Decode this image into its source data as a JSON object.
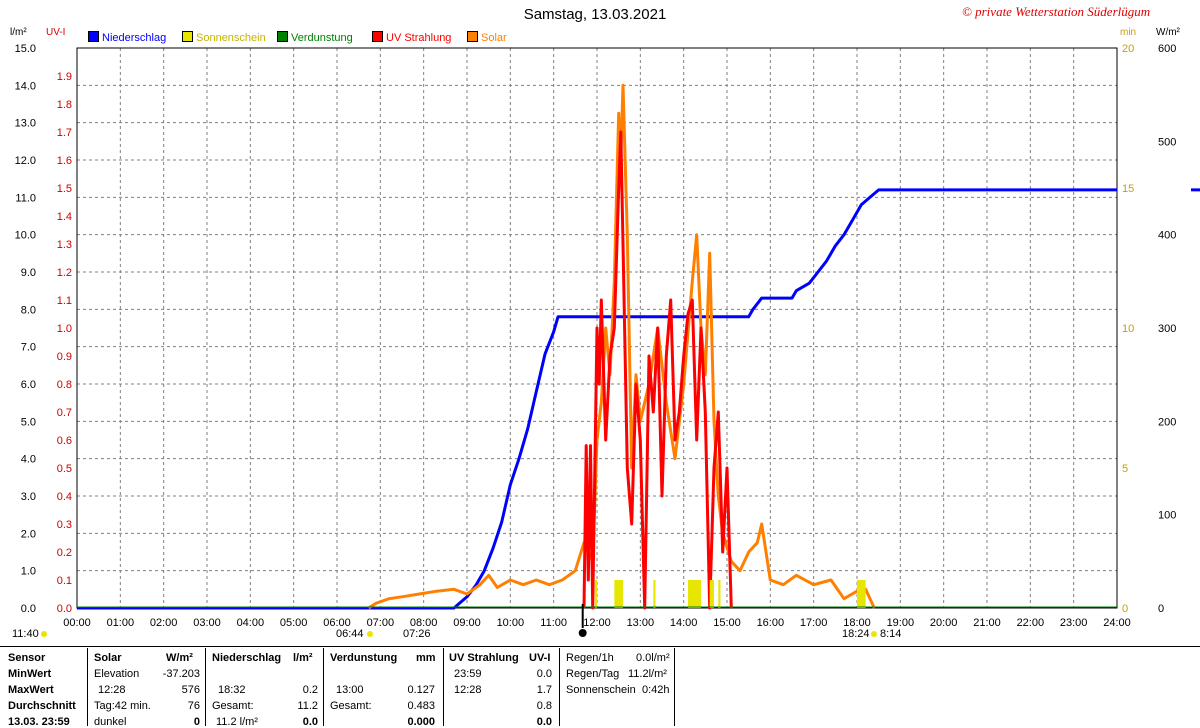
{
  "title": "Samstag, 13.03.2021",
  "station": "© private Wetterstation Süderlügum",
  "legend": [
    {
      "label": "Niederschlag",
      "color": "#0000ff"
    },
    {
      "label": "Sonnenschein",
      "color": "#e6e600"
    },
    {
      "label": "Verdunstung",
      "color": "#008000"
    },
    {
      "label": "UV Strahlung",
      "color": "#ff0000"
    },
    {
      "label": "Solar",
      "color": "#ff8000"
    }
  ],
  "axis_units": {
    "left1": "l/m²",
    "left2": "UV-I",
    "right1": "min",
    "right2": "W/m²"
  },
  "markers": {
    "left_time": "11:40",
    "sunrise_left": "06:44",
    "sunrise_right": "07:26",
    "sunset_left": "18:24",
    "sunset_right": "8:14"
  },
  "chart_data": {
    "type": "line",
    "x_ticks": [
      "00:00",
      "01:00",
      "02:00",
      "03:00",
      "04:00",
      "05:00",
      "06:00",
      "07:00",
      "08:00",
      "09:00",
      "10:00",
      "11:00",
      "12:00",
      "13:00",
      "14:00",
      "15:00",
      "16:00",
      "17:00",
      "18:00",
      "19:00",
      "20:00",
      "21:00",
      "22:00",
      "23:00",
      "24:00"
    ],
    "y_left_precip_ticks": [
      "0.0",
      "1.0",
      "2.0",
      "3.0",
      "4.0",
      "5.0",
      "6.0",
      "7.0",
      "8.0",
      "9.0",
      "10.0",
      "11.0",
      "12.0",
      "13.0",
      "14.0",
      "15.0"
    ],
    "y_left_uv_ticks": [
      "0.0",
      "0.1",
      "0.2",
      "0.3",
      "0.4",
      "0.5",
      "0.6",
      "0.7",
      "0.8",
      "0.9",
      "1.0",
      "1.1",
      "1.2",
      "1.3",
      "1.4",
      "1.5",
      "1.6",
      "1.7",
      "1.8",
      "1.9"
    ],
    "y_right_min_ticks": [
      "0",
      "5",
      "10",
      "15",
      "20"
    ],
    "y_right_solar_ticks": [
      "0",
      "100",
      "200",
      "300",
      "400",
      "500",
      "600"
    ],
    "ylim_precip": [
      0,
      15
    ],
    "ylim_uv": [
      0,
      2.0
    ],
    "ylim_min": [
      0,
      20
    ],
    "ylim_solar": [
      0,
      600
    ],
    "series": [
      {
        "name": "Niederschlag",
        "axis": "precip",
        "color": "#0000ff",
        "points": [
          [
            0,
            0
          ],
          [
            8.7,
            0
          ],
          [
            8.8,
            0.1
          ],
          [
            9.0,
            0.3
          ],
          [
            9.2,
            0.6
          ],
          [
            9.4,
            1.0
          ],
          [
            9.6,
            1.6
          ],
          [
            9.8,
            2.3
          ],
          [
            10.0,
            3.3
          ],
          [
            10.2,
            4.0
          ],
          [
            10.4,
            4.8
          ],
          [
            10.6,
            5.8
          ],
          [
            10.8,
            6.8
          ],
          [
            11.0,
            7.4
          ],
          [
            11.1,
            7.8
          ],
          [
            15.5,
            7.8
          ],
          [
            15.6,
            8.0
          ],
          [
            15.8,
            8.3
          ],
          [
            16.5,
            8.3
          ],
          [
            16.6,
            8.5
          ],
          [
            16.9,
            8.7
          ],
          [
            17.1,
            9.0
          ],
          [
            17.3,
            9.3
          ],
          [
            17.5,
            9.7
          ],
          [
            17.7,
            10.0
          ],
          [
            17.9,
            10.4
          ],
          [
            18.1,
            10.8
          ],
          [
            18.3,
            11.0
          ],
          [
            18.5,
            11.2
          ],
          [
            24,
            11.2
          ]
        ]
      },
      {
        "name": "Solar",
        "axis": "solar",
        "color": "#ff8000",
        "points": [
          [
            6.73,
            0
          ],
          [
            6.9,
            5
          ],
          [
            7.2,
            10
          ],
          [
            7.5,
            12
          ],
          [
            7.9,
            15
          ],
          [
            8.3,
            18
          ],
          [
            8.7,
            20
          ],
          [
            9.0,
            15
          ],
          [
            9.3,
            25
          ],
          [
            9.5,
            35
          ],
          [
            9.7,
            22
          ],
          [
            10.0,
            30
          ],
          [
            10.3,
            25
          ],
          [
            10.6,
            30
          ],
          [
            10.9,
            25
          ],
          [
            11.2,
            30
          ],
          [
            11.5,
            40
          ],
          [
            11.7,
            70
          ],
          [
            11.9,
            50
          ],
          [
            12.0,
            180
          ],
          [
            12.1,
            220
          ],
          [
            12.2,
            300
          ],
          [
            12.3,
            250
          ],
          [
            12.4,
            350
          ],
          [
            12.5,
            530
          ],
          [
            12.55,
            480
          ],
          [
            12.6,
            560
          ],
          [
            12.7,
            400
          ],
          [
            12.8,
            150
          ],
          [
            12.9,
            250
          ],
          [
            13.0,
            200
          ],
          [
            13.2,
            240
          ],
          [
            13.4,
            300
          ],
          [
            13.6,
            220
          ],
          [
            13.8,
            160
          ],
          [
            14.0,
            240
          ],
          [
            14.2,
            350
          ],
          [
            14.3,
            400
          ],
          [
            14.4,
            300
          ],
          [
            14.5,
            250
          ],
          [
            14.6,
            380
          ],
          [
            14.7,
            200
          ],
          [
            14.8,
            120
          ],
          [
            14.9,
            80
          ],
          [
            15.1,
            50
          ],
          [
            15.3,
            40
          ],
          [
            15.5,
            60
          ],
          [
            15.7,
            70
          ],
          [
            15.8,
            90
          ],
          [
            15.9,
            60
          ],
          [
            16.0,
            30
          ],
          [
            16.3,
            25
          ],
          [
            16.6,
            35
          ],
          [
            17.0,
            25
          ],
          [
            17.4,
            30
          ],
          [
            17.7,
            10
          ],
          [
            18.0,
            18
          ],
          [
            18.2,
            20
          ],
          [
            18.3,
            10
          ],
          [
            18.4,
            0
          ]
        ]
      },
      {
        "name": "UV Strahlung",
        "axis": "uv",
        "color": "#ff0000",
        "points": [
          [
            11.7,
            0
          ],
          [
            11.75,
            0.58
          ],
          [
            11.8,
            0.1
          ],
          [
            11.85,
            0.58
          ],
          [
            11.9,
            0
          ],
          [
            12.0,
            1.0
          ],
          [
            12.05,
            0.8
          ],
          [
            12.1,
            1.1
          ],
          [
            12.2,
            0.6
          ],
          [
            12.3,
            0.9
          ],
          [
            12.4,
            1.0
          ],
          [
            12.5,
            1.5
          ],
          [
            12.55,
            1.7
          ],
          [
            12.6,
            1.3
          ],
          [
            12.7,
            0.5
          ],
          [
            12.8,
            0.3
          ],
          [
            12.9,
            0.8
          ],
          [
            13.0,
            0.6
          ],
          [
            13.1,
            0.0
          ],
          [
            13.2,
            0.9
          ],
          [
            13.3,
            0.7
          ],
          [
            13.4,
            1.0
          ],
          [
            13.5,
            0.4
          ],
          [
            13.6,
            0.9
          ],
          [
            13.7,
            1.1
          ],
          [
            13.8,
            0.6
          ],
          [
            13.9,
            0.7
          ],
          [
            14.0,
            0.9
          ],
          [
            14.1,
            1.05
          ],
          [
            14.2,
            1.1
          ],
          [
            14.3,
            0.6
          ],
          [
            14.4,
            1.0
          ],
          [
            14.5,
            0.7
          ],
          [
            14.6,
            0.0
          ],
          [
            14.7,
            0.5
          ],
          [
            14.8,
            0.7
          ],
          [
            14.9,
            0.2
          ],
          [
            15.0,
            0.5
          ],
          [
            15.1,
            0.0
          ]
        ]
      },
      {
        "name": "Sonnenschein",
        "axis": "min",
        "color": "#e6e600",
        "bars": [
          [
            11.95,
            12.0,
            1
          ],
          [
            12.4,
            12.6,
            1
          ],
          [
            13.3,
            13.35,
            1
          ],
          [
            14.1,
            14.4,
            1
          ],
          [
            14.6,
            14.7,
            1
          ],
          [
            14.8,
            14.85,
            1
          ],
          [
            18.0,
            18.2,
            1
          ]
        ]
      }
    ]
  },
  "sensors": {
    "headers": [
      "Sensor",
      "MinWert",
      "MaxWert",
      "Durchschnitt",
      "13.03. 23:59"
    ],
    "solar": {
      "title": "Solar",
      "unit": "W/m²",
      "r1a": "Elevation",
      "r1b": "-37.203",
      "r2a": "12:28",
      "r2b": "576",
      "r3a": "Tag:42 min.",
      "r3b": "76",
      "r4a": "dunkel",
      "r4b": "0"
    },
    "rain": {
      "title": "Niederschlag",
      "unit": "l/m²",
      "r2a": "18:32",
      "r2b": "0.2",
      "r3a": "Gesamt:",
      "r3b": "11.2",
      "r4a": "11.2 l/m²",
      "r4b": "0.0"
    },
    "evap": {
      "title": "Verdunstung",
      "unit": "mm",
      "r2a": "13:00",
      "r2b": "0.127",
      "r3a": "Gesamt:",
      "r3b": "0.483",
      "r4b": "0.000"
    },
    "uv": {
      "title": "UV Strahlung",
      "unit": "UV-I",
      "r1a": "23:59",
      "r1b": "0.0",
      "r2a": "12:28",
      "r2b": "1.7",
      "r3b": "0.8",
      "r4b": "0.0"
    },
    "extra": {
      "r1a": "Regen/1h",
      "r1b": "0.0l/m²",
      "r2a": "Regen/Tag",
      "r2b": "11.2l/m²",
      "r3a": "Sonnenschein",
      "r3b": "0:42h"
    }
  }
}
